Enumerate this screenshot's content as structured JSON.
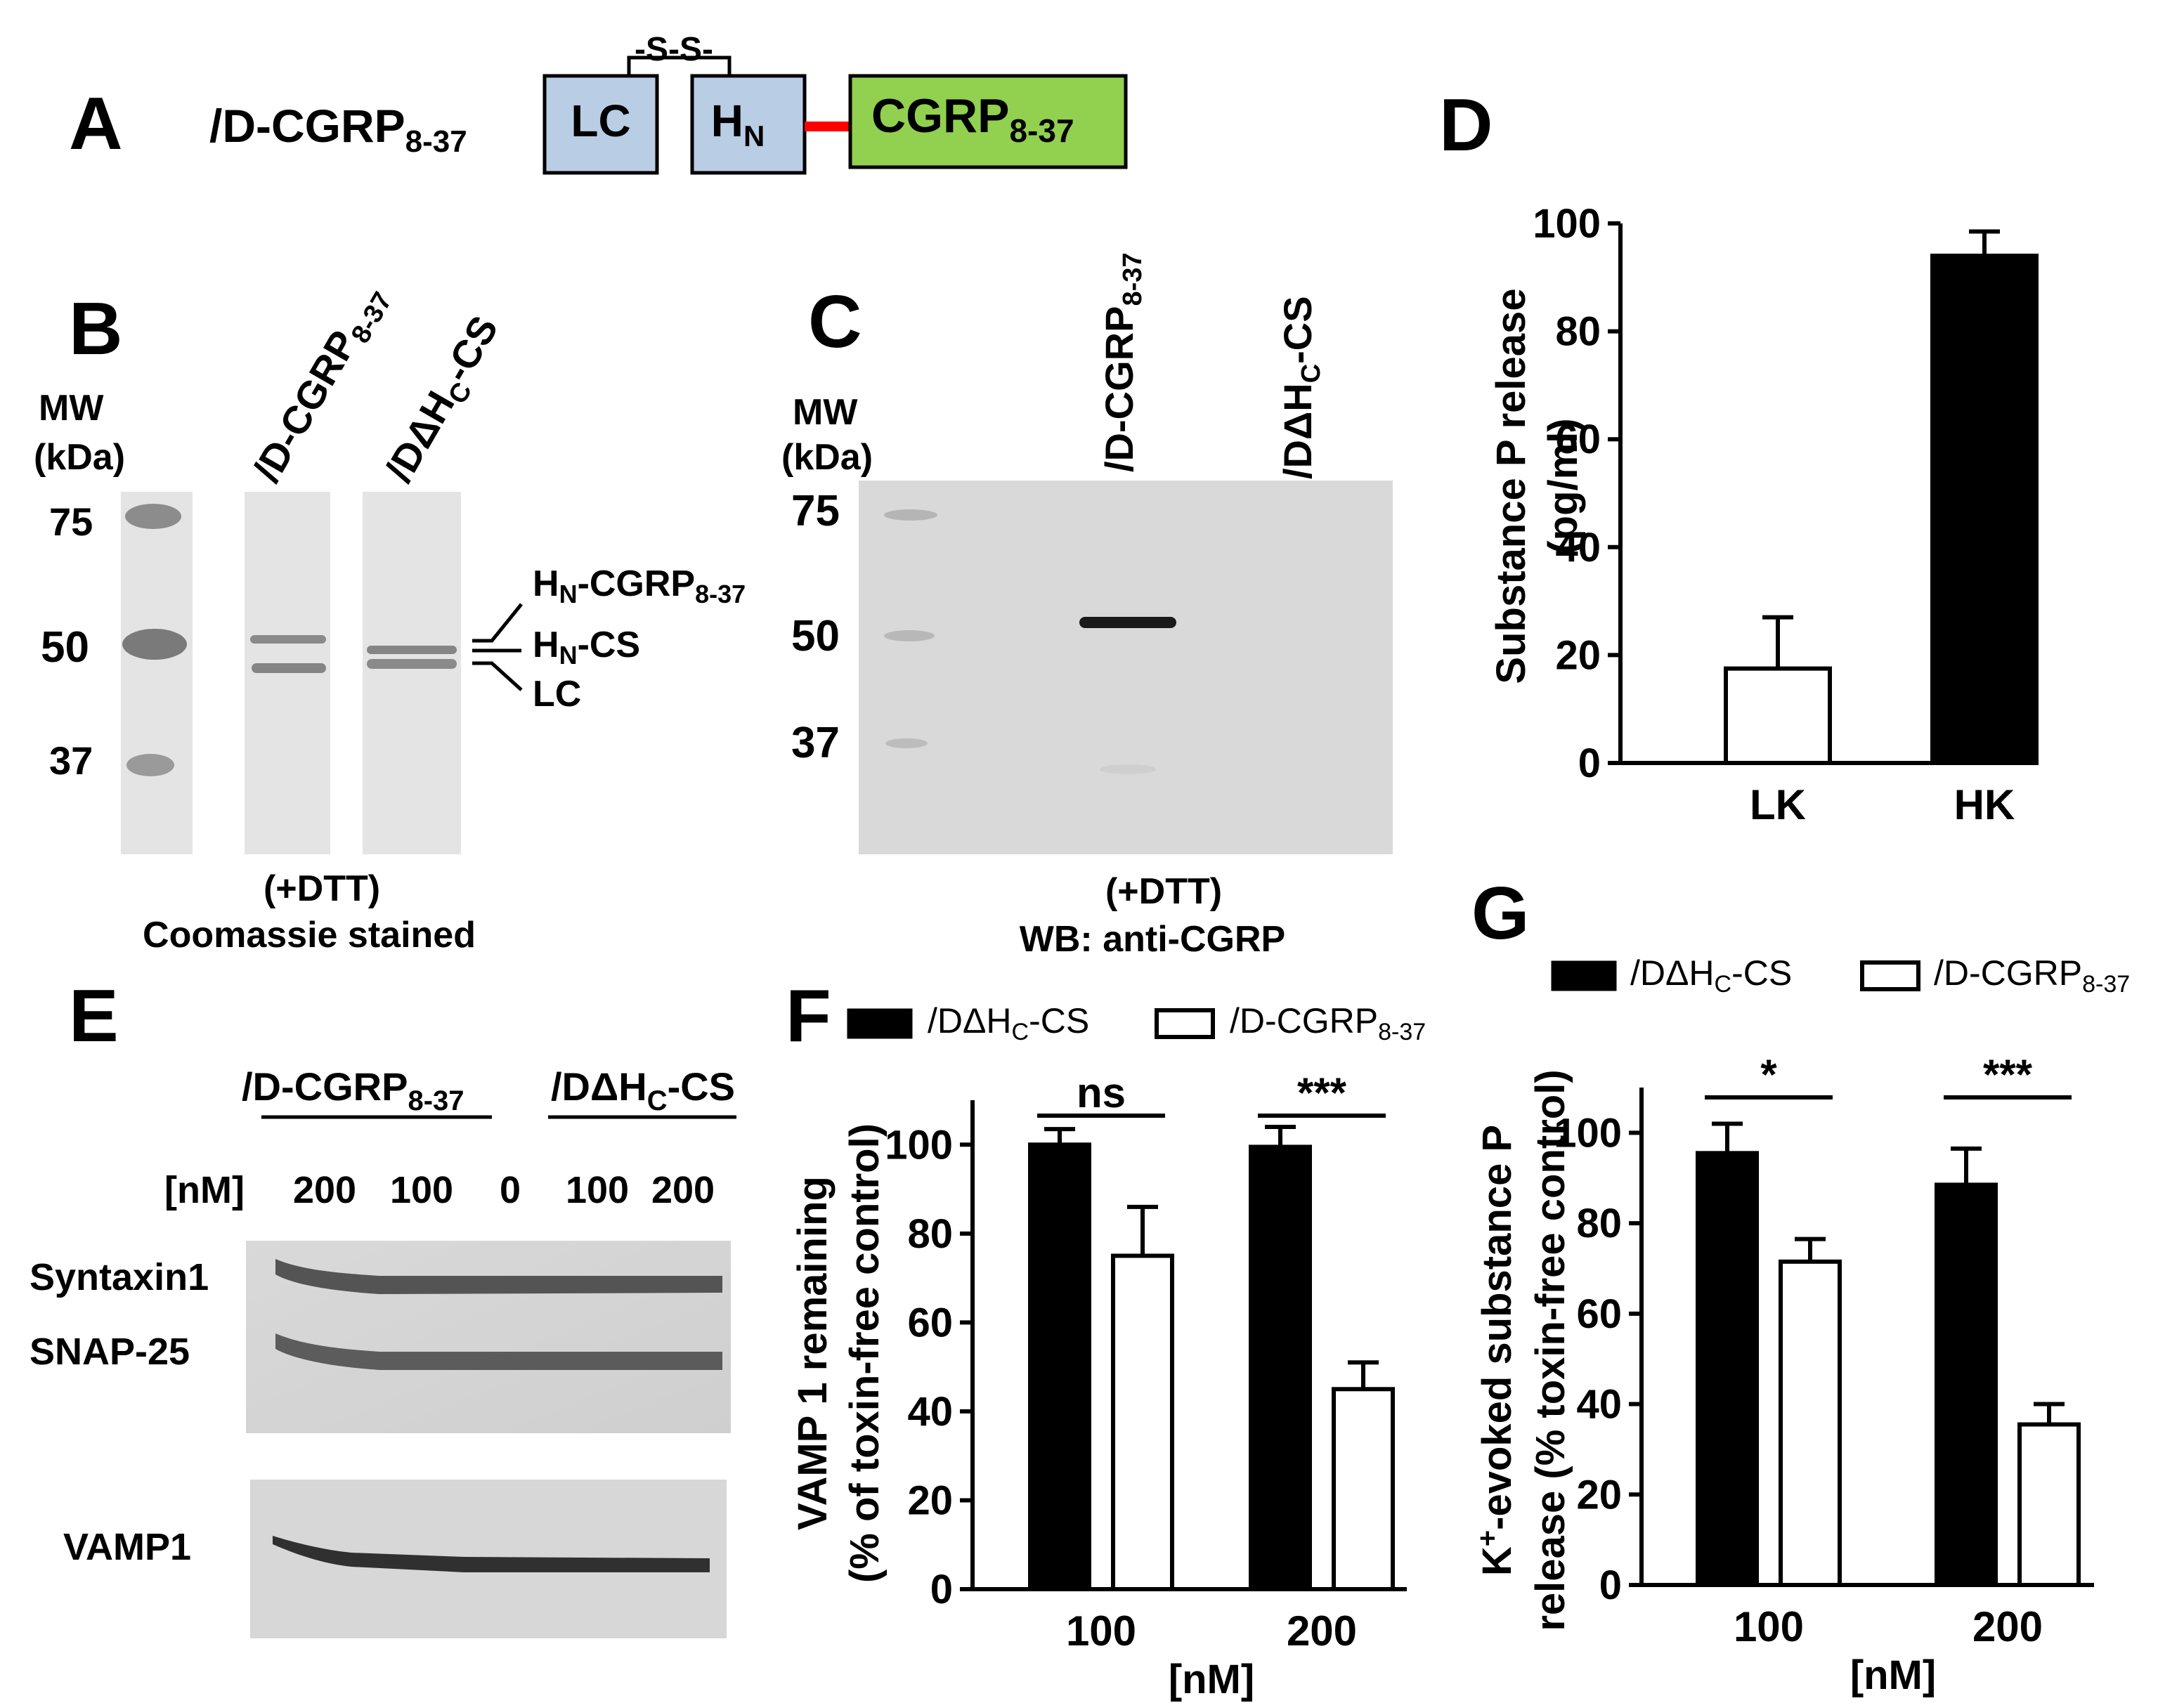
{
  "panel_labels": {
    "a": "A",
    "b": "B",
    "c": "C",
    "d": "D",
    "e": "E",
    "f": "F",
    "g": "G"
  },
  "panel_a": {
    "construct_prefix": "/D-CGRP",
    "construct_sub": "8-37",
    "disulfide": "-S-S-",
    "lc": "LC",
    "hn": "H",
    "hn_sub": "N",
    "cgrp": "CGRP",
    "cgrp_sub": "8-37",
    "colors": {
      "domain_box": "#b9cde5",
      "cgrp_box": "#92d050",
      "linker": "#ff0000"
    }
  },
  "panel_b": {
    "mw_label": "MW",
    "kda_label": "(kDa)",
    "markers": [
      "75",
      "50",
      "37"
    ],
    "lane1_prefix": "/D-CGRP",
    "lane1_sub": "8-37",
    "lane2_a": "/DΔH",
    "lane2_sub": "C",
    "lane2_b": "-CS",
    "band_hn_cgrp": "H",
    "band_hn_cgrp_sub": "N",
    "band_hn_cgrp_tail": "-CGRP",
    "band_hn_cgrp_tail_sub": "8-37",
    "band_hn_cs": "H",
    "band_hn_cs_sub": "N",
    "band_hn_cs_tail": "-CS",
    "band_lc": "LC",
    "cond": "(+DTT)",
    "stain": "Coomassie  stained"
  },
  "panel_c": {
    "mw_label": "MW",
    "kda_label": "(kDa)",
    "markers": [
      "75",
      "50",
      "37"
    ],
    "lane1_prefix": "/D-CGRP",
    "lane1_sub": "8-37",
    "lane2_a": "/DΔH",
    "lane2_sub": "C",
    "lane2_b": "-CS",
    "cond": "(+DTT)",
    "wb": "WB: anti-CGRP"
  },
  "panel_e": {
    "group1_prefix": "/D-CGRP",
    "group1_sub": "8-37",
    "group2_a": "/DΔH",
    "group2_sub": "C",
    "group2_b": "-CS",
    "conc_label": "[nM]",
    "lanes": [
      "200",
      "100",
      "0",
      "100",
      "200"
    ],
    "rows": [
      "Syntaxin1",
      "SNAP-25",
      "VAMP1"
    ]
  },
  "legend": {
    "black_a": "/DΔH",
    "black_sub": "C",
    "black_b": "-CS",
    "white_a": "/D-CGRP",
    "white_sub": "8-37"
  },
  "chart_data": [
    {
      "panel": "D",
      "type": "bar",
      "categories": [
        "LK",
        "HK"
      ],
      "values": [
        17.5,
        94
      ],
      "errors": [
        9.5,
        4.5
      ],
      "colors": [
        "#ffffff",
        "#000000"
      ],
      "ylabel": "Substance P release",
      "ylabel2": "(pg/ml)",
      "ylim": [
        0,
        100
      ],
      "yticks": [
        0,
        20,
        40,
        60,
        80,
        100
      ]
    },
    {
      "panel": "F",
      "type": "bar",
      "categories": [
        "100",
        "200"
      ],
      "series": [
        {
          "values": [
            100,
            99.5
          ],
          "errors": [
            3.5,
            4.5
          ],
          "color": "#000000"
        },
        {
          "values": [
            75,
            45
          ],
          "errors": [
            11,
            6
          ],
          "color": "#ffffff"
        }
      ],
      "significance": [
        "ns",
        "***"
      ],
      "xlabel": "[nM]",
      "ylabel": "VAMP 1 remaining",
      "ylabel2": "(% of toxin-free control)",
      "ylim": [
        0,
        110
      ],
      "yticks": [
        0,
        20,
        40,
        60,
        80,
        100
      ]
    },
    {
      "panel": "G",
      "type": "bar",
      "categories": [
        "100",
        "200"
      ],
      "series": [
        {
          "values": [
            95.5,
            88.5
          ],
          "errors": [
            6.5,
            8
          ],
          "color": "#000000"
        },
        {
          "values": [
            71.5,
            35.5
          ],
          "errors": [
            5,
            4.5
          ],
          "color": "#ffffff"
        }
      ],
      "significance": [
        "*",
        "***"
      ],
      "xlabel": "[nM]",
      "ylabel_a": "K",
      "ylabel_sup": "+",
      "ylabel_b": "-evoked substance P",
      "ylabel2": "release (% toxin-free control)",
      "ylim": [
        0,
        110
      ],
      "yticks": [
        0,
        20,
        40,
        60,
        80,
        100
      ]
    }
  ]
}
